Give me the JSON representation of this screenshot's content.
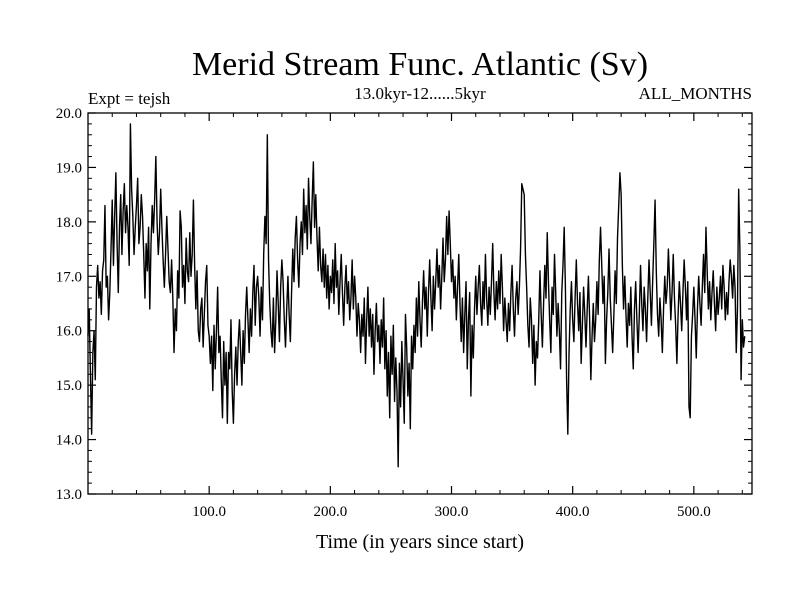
{
  "chart_data": {
    "type": "line",
    "title": "Merid Stream Func. Atlantic (Sv)",
    "subtitle": "13.0kyr-12......5kyr",
    "expt_label": "Expt = tejsh",
    "season_label": "ALL_MONTHS",
    "xlabel": "Time (in years since start)",
    "ylabel": "",
    "xlim": [
      0,
      548
    ],
    "ylim": [
      13.0,
      20.0
    ],
    "x_ticks": [
      100,
      200,
      300,
      400,
      500
    ],
    "x_tick_labels": [
      "100.0",
      "200.0",
      "300.0",
      "400.0",
      "500.0"
    ],
    "y_ticks": [
      13,
      14,
      15,
      16,
      17,
      18,
      19,
      20
    ],
    "y_tick_labels": [
      "13.0",
      "14.0",
      "15.0",
      "16.0",
      "17.0",
      "18.0",
      "19.0",
      "20.0"
    ],
    "grid": false,
    "line_color": "#000000",
    "series": [
      {
        "name": "Merid Stream Func. Atlantic",
        "x_start": 0,
        "x_step": 1,
        "values": [
          15.9,
          16.4,
          15.2,
          14.1,
          15.6,
          16.0,
          15.1,
          16.8,
          17.2,
          16.6,
          16.9,
          16.3,
          17.1,
          17.3,
          18.3,
          16.8,
          17.0,
          16.2,
          16.7,
          17.5,
          18.4,
          17.2,
          18.1,
          18.9,
          17.6,
          16.7,
          17.9,
          18.5,
          17.4,
          18.2,
          18.7,
          17.8,
          18.3,
          17.9,
          17.2,
          19.8,
          18.6,
          18.1,
          17.4,
          17.9,
          18.3,
          18.8,
          17.6,
          17.9,
          18.5,
          18.1,
          17.4,
          16.6,
          17.6,
          17.1,
          17.9,
          16.4,
          17.6,
          18.3,
          17.8,
          18.4,
          19.2,
          18.0,
          17.4,
          17.8,
          18.6,
          17.9,
          17.3,
          16.8,
          17.4,
          18.1,
          17.5,
          16.9,
          16.7,
          17.3,
          16.6,
          15.6,
          16.4,
          16.0,
          17.1,
          16.6,
          18.2,
          17.9,
          16.8,
          17.2,
          16.5,
          17.7,
          17.1,
          16.9,
          17.8,
          17.0,
          17.4,
          18.4,
          17.2,
          16.4,
          17.1,
          16.0,
          15.8,
          16.4,
          16.6,
          15.7,
          16.3,
          16.9,
          17.2,
          16.1,
          15.9,
          15.4,
          15.9,
          14.9,
          16.1,
          15.3,
          16.0,
          16.8,
          15.6,
          15.9,
          15.1,
          14.4,
          15.8,
          15.0,
          15.6,
          14.3,
          15.6,
          15.3,
          16.2,
          14.9,
          14.3,
          15.2,
          15.7,
          15.0,
          15.8,
          16.2,
          15.6,
          15.0,
          16.0,
          15.4,
          16.3,
          16.8,
          16.2,
          15.6,
          16.4,
          15.9,
          16.7,
          17.2,
          16.1,
          16.8,
          17.0,
          16.6,
          15.9,
          16.8,
          16.2,
          17.4,
          18.1,
          17.6,
          19.6,
          17.3,
          16.5,
          16.0,
          15.7,
          16.6,
          15.6,
          16.2,
          17.1,
          16.5,
          15.8,
          16.8,
          17.3,
          16.9,
          16.2,
          15.7,
          16.4,
          17.0,
          16.3,
          15.8,
          16.7,
          17.5,
          16.9,
          17.7,
          18.1,
          17.3,
          16.8,
          17.6,
          18.0,
          17.4,
          18.6,
          17.8,
          18.3,
          17.5,
          18.8,
          18.1,
          17.6,
          18.4,
          19.1,
          17.9,
          18.5,
          17.7,
          17.1,
          17.9,
          17.2,
          16.9,
          17.5,
          16.8,
          17.4,
          16.6,
          17.2,
          16.4,
          17.0,
          16.7,
          17.3,
          16.5,
          17.6,
          16.8,
          17.1,
          16.3,
          16.9,
          17.4,
          16.7,
          16.1,
          16.8,
          17.2,
          16.5,
          16.9,
          16.2,
          16.6,
          17.3,
          16.4,
          17.0,
          16.6,
          15.9,
          16.5,
          16.2,
          15.6,
          16.3,
          15.9,
          16.6,
          15.4,
          16.2,
          16.8,
          15.9,
          16.4,
          15.7,
          16.3,
          15.2,
          16.0,
          16.5,
          15.8,
          16.1,
          15.4,
          16.2,
          15.7,
          16.6,
          15.3,
          16.0,
          14.8,
          15.6,
          14.4,
          15.9,
          15.2,
          16.1,
          14.7,
          15.5,
          14.9,
          13.5,
          15.4,
          14.6,
          15.8,
          15.1,
          14.3,
          16.3,
          15.7,
          14.8,
          15.4,
          14.2,
          15.9,
          15.3,
          16.1,
          15.6,
          16.6,
          15.9,
          16.9,
          16.2,
          15.7,
          16.5,
          17.1,
          16.4,
          16.8,
          15.9,
          16.7,
          17.3,
          16.6,
          16.0,
          17.0,
          16.4,
          16.9,
          17.5,
          16.8,
          17.2,
          16.4,
          17.0,
          17.7,
          16.9,
          17.3,
          18.1,
          17.4,
          18.2,
          17.6,
          16.9,
          17.3,
          16.6,
          17.0,
          16.2,
          16.8,
          17.4,
          16.5,
          15.8,
          16.6,
          15.6,
          16.3,
          16.9,
          15.3,
          16.2,
          16.7,
          14.8,
          16.1,
          15.5,
          16.4,
          17.0,
          16.3,
          16.8,
          17.2,
          16.5,
          16.1,
          16.9,
          16.4,
          17.4,
          16.6,
          16.1,
          16.8,
          16.3,
          16.9,
          17.6,
          16.7,
          16.2,
          16.9,
          16.4,
          17.1,
          16.5,
          17.4,
          16.8,
          16.0,
          16.6,
          16.2,
          15.8,
          16.5,
          16.0,
          16.7,
          17.2,
          16.4,
          15.9,
          16.6,
          16.9,
          16.3,
          16.8,
          17.5,
          18.7,
          18.6,
          18.5,
          17.4,
          16.8,
          16.1,
          15.7,
          16.6,
          16.2,
          15.4,
          16.1,
          15.0,
          15.8,
          15.5,
          16.2,
          17.1,
          16.3,
          15.7,
          16.5,
          17.2,
          16.6,
          17.8,
          16.9,
          16.2,
          15.6,
          16.8,
          16.3,
          17.4,
          16.7,
          15.9,
          16.5,
          16.0,
          15.3,
          16.7,
          17.2,
          17.9,
          16.8,
          15.1,
          14.1,
          15.6,
          16.4,
          16.9,
          16.2,
          15.8,
          16.6,
          17.3,
          16.5,
          16.0,
          16.7,
          15.4,
          16.1,
          16.8,
          16.3,
          15.7,
          16.4,
          17.0,
          16.2,
          15.1,
          15.9,
          16.5,
          15.8,
          16.2,
          16.9,
          16.3,
          17.3,
          17.9,
          17.2,
          16.5,
          17.0,
          15.4,
          16.2,
          16.7,
          17.5,
          16.6,
          16.1,
          15.6,
          16.3,
          17.1,
          16.5,
          17.7,
          18.3,
          18.9,
          18.5,
          17.2,
          16.4,
          17.0,
          16.3,
          15.7,
          16.5,
          16.1,
          16.8,
          15.9,
          15.3,
          16.4,
          16.9,
          16.2,
          15.6,
          16.3,
          17.2,
          16.5,
          16.0,
          16.8,
          16.4,
          15.8,
          16.6,
          17.3,
          16.7,
          16.1,
          16.9,
          17.6,
          18.4,
          17.1,
          16.3,
          15.9,
          16.6,
          16.2,
          15.6,
          16.4,
          17.0,
          16.5,
          16.8,
          17.5,
          16.9,
          16.2,
          16.7,
          17.4,
          16.6,
          16.1,
          15.4,
          16.3,
          16.9,
          16.5,
          16.0,
          16.7,
          17.3,
          16.8,
          16.2,
          16.9,
          14.6,
          14.4,
          15.9,
          16.3,
          16.8,
          16.2,
          15.5,
          16.4,
          17.0,
          16.5,
          16.1,
          16.8,
          17.4,
          16.7,
          17.9,
          17.1,
          16.4,
          16.9,
          16.2,
          16.7,
          17.1,
          16.5,
          16.0,
          16.8,
          16.3,
          16.6,
          17.0,
          16.4,
          17.2,
          16.8,
          16.2,
          16.7,
          16.3,
          16.9,
          17.3,
          17.0,
          16.6,
          17.2,
          16.8,
          15.6,
          16.4,
          18.6,
          17.5,
          15.1,
          16.2,
          15.7,
          15.9
        ]
      }
    ]
  }
}
